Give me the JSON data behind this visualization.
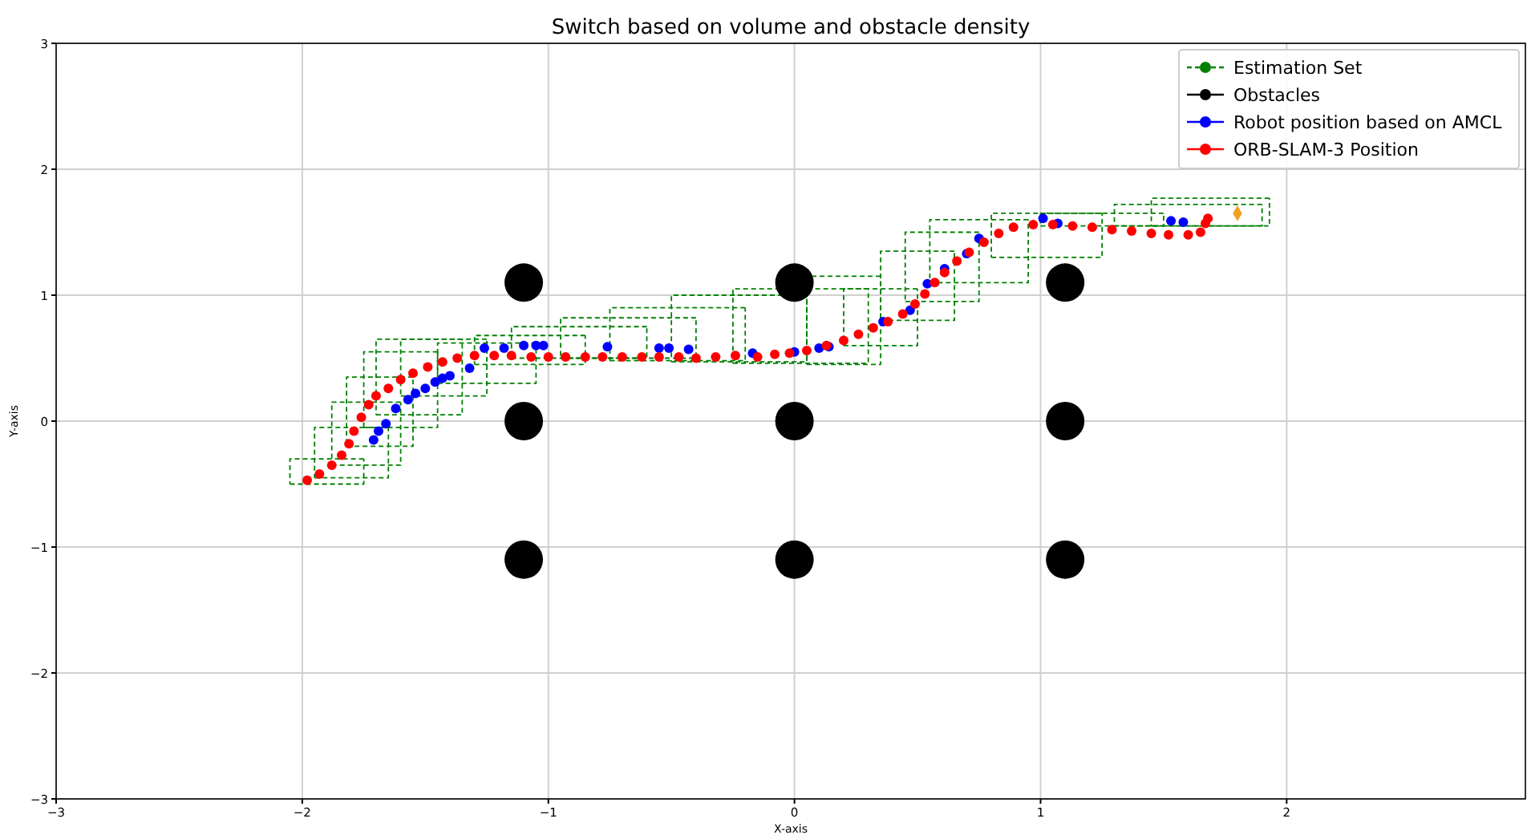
{
  "chart_data": {
    "type": "scatter",
    "title": "Switch based on volume and obstacle density",
    "xlabel": "X-axis",
    "ylabel": "Y-axis",
    "xlim": [
      -3,
      2.97
    ],
    "ylim": [
      -3,
      3
    ],
    "xticks": [
      -3,
      -2,
      -1,
      0,
      1,
      2
    ],
    "yticks": [
      -3,
      -2,
      -1,
      0,
      1,
      2,
      3
    ],
    "grid": true,
    "legend": "top right",
    "series": [
      {
        "name": "Estimation Set",
        "type": "line",
        "line_style": "dashed",
        "marker": "none",
        "color": "#008000",
        "x": [
          -2.05,
          -1.75,
          -1.75,
          null,
          -1.75,
          -2.05,
          -2.05,
          null,
          -1.95,
          -1.65,
          -1.65,
          null,
          -1.65,
          -1.95,
          -1.95,
          null,
          -1.88,
          -1.6,
          -1.6,
          null,
          -1.6,
          -1.88,
          -1.88,
          null,
          -1.82,
          -1.55,
          -1.55,
          null,
          -1.55,
          -1.82,
          -1.82,
          null,
          -1.75,
          -1.45,
          -1.45,
          null,
          -1.45,
          -1.75,
          -1.75,
          null,
          -1.7,
          -1.35,
          -1.35,
          null,
          -1.35,
          -1.7,
          -1.7,
          null,
          -1.6,
          -1.25,
          -1.25,
          null,
          -1.25,
          -1.6,
          -1.6,
          null,
          -1.45,
          -1.05,
          -1.05,
          null,
          -1.05,
          -1.45,
          -1.45,
          null,
          -1.3,
          -0.85,
          -0.85,
          null,
          -0.85,
          -1.3,
          -1.3,
          null,
          -1.15,
          -0.6,
          -0.6,
          null,
          -0.6,
          -1.15,
          -1.15,
          null,
          -0.95,
          -0.4,
          -0.4,
          null,
          -0.4,
          -0.95,
          -0.95,
          null,
          -0.75,
          -0.2,
          -0.2,
          null,
          -0.2,
          -0.75,
          -0.75,
          null,
          -0.5,
          0.05,
          0.05,
          null,
          0.05,
          -0.5,
          -0.5,
          null,
          -0.25,
          0.3,
          0.3,
          null,
          0.3,
          -0.25,
          -0.25,
          null,
          0.05,
          0.35,
          0.35,
          null,
          0.35,
          0.05,
          0.05,
          null,
          0.2,
          0.5,
          0.5,
          null,
          0.5,
          0.2,
          0.2,
          null,
          0.35,
          0.65,
          0.65,
          null,
          0.65,
          0.35,
          0.35,
          null,
          0.45,
          0.75,
          0.75,
          null,
          0.75,
          0.45,
          0.45,
          null,
          0.55,
          0.95,
          0.95,
          null,
          0.95,
          0.55,
          0.55,
          null,
          0.8,
          1.25,
          1.25,
          null,
          1.25,
          0.8,
          0.8,
          null,
          1.0,
          1.5,
          1.5,
          null,
          1.5,
          1.0,
          1.0,
          null,
          1.3,
          1.9,
          1.9,
          null,
          1.9,
          1.3,
          1.3,
          null,
          1.45,
          1.93,
          1.93,
          null,
          1.93,
          1.45,
          1.45
        ],
        "values": [
          -0.5,
          -0.5,
          -0.3,
          null,
          -0.3,
          -0.3,
          -0.5,
          null,
          -0.45,
          -0.45,
          -0.05,
          null,
          -0.05,
          -0.05,
          -0.45,
          null,
          -0.35,
          -0.35,
          0.15,
          null,
          0.15,
          0.15,
          -0.35,
          null,
          -0.2,
          -0.2,
          0.35,
          null,
          0.35,
          0.35,
          -0.2,
          null,
          -0.05,
          -0.05,
          0.55,
          null,
          0.55,
          0.55,
          -0.05,
          null,
          0.05,
          0.05,
          0.65,
          null,
          0.65,
          0.65,
          0.05,
          null,
          0.2,
          0.2,
          0.65,
          null,
          0.65,
          0.65,
          0.2,
          null,
          0.3,
          0.3,
          0.62,
          null,
          0.62,
          0.62,
          0.3,
          null,
          0.45,
          0.45,
          0.68,
          null,
          0.68,
          0.68,
          0.45,
          null,
          0.5,
          0.5,
          0.75,
          null,
          0.75,
          0.75,
          0.5,
          null,
          0.5,
          0.5,
          0.82,
          null,
          0.82,
          0.82,
          0.5,
          null,
          0.48,
          0.48,
          0.9,
          null,
          0.9,
          0.9,
          0.48,
          null,
          0.47,
          0.47,
          1.0,
          null,
          1.0,
          1.0,
          0.47,
          null,
          0.46,
          0.46,
          1.05,
          null,
          1.05,
          1.05,
          0.46,
          null,
          0.45,
          0.45,
          1.15,
          null,
          1.15,
          1.15,
          0.45,
          null,
          0.6,
          0.6,
          1.05,
          null,
          1.05,
          1.05,
          0.6,
          null,
          0.8,
          0.8,
          1.35,
          null,
          1.35,
          1.35,
          0.8,
          null,
          0.95,
          0.95,
          1.5,
          null,
          1.5,
          1.5,
          0.95,
          null,
          1.1,
          1.1,
          1.6,
          null,
          1.6,
          1.6,
          1.1,
          null,
          1.3,
          1.3,
          1.65,
          null,
          1.65,
          1.65,
          1.3,
          null,
          1.55,
          1.55,
          1.65,
          null,
          1.65,
          1.65,
          1.55,
          null,
          1.55,
          1.55,
          1.72,
          null,
          1.72,
          1.72,
          1.55,
          null,
          1.55,
          1.55,
          1.77,
          null,
          1.77,
          1.77,
          1.55
        ]
      },
      {
        "name": "Obstacles",
        "type": "bubble",
        "marker": "circle",
        "color": "#000000",
        "x": [
          -1.1,
          -1.1,
          -1.1,
          0,
          0,
          0,
          1.1,
          1.1,
          1.1
        ],
        "values": [
          1.1,
          0,
          -1.1,
          1.1,
          0,
          -1.1,
          1.1,
          0,
          -1.1
        ],
        "sizes": [
          1,
          1,
          1,
          1,
          1,
          1,
          1,
          1,
          1
        ]
      },
      {
        "name": "Robot position based on AMCL",
        "type": "scatter",
        "marker": "circle",
        "color": "#0000ff",
        "x": [
          -1.71,
          -1.69,
          -1.66,
          -1.62,
          -1.57,
          -1.54,
          -1.5,
          -1.46,
          -1.43,
          -1.4,
          -1.32,
          -1.26,
          -1.18,
          -1.1,
          -1.05,
          -1.02,
          -0.76,
          -0.55,
          -0.51,
          -0.43,
          -0.17,
          0.0,
          0.1,
          0.14,
          0.36,
          0.47,
          0.54,
          0.61,
          0.7,
          0.75,
          1.01,
          1.07,
          1.53,
          1.58
        ],
        "values": [
          -0.15,
          -0.08,
          -0.02,
          0.1,
          0.17,
          0.22,
          0.26,
          0.31,
          0.34,
          0.36,
          0.42,
          0.58,
          0.58,
          0.6,
          0.6,
          0.6,
          0.59,
          0.58,
          0.58,
          0.57,
          0.54,
          0.55,
          0.58,
          0.59,
          0.79,
          0.88,
          1.09,
          1.21,
          1.33,
          1.45,
          1.61,
          1.57,
          1.59,
          1.58
        ]
      },
      {
        "name": "ORB-SLAM-3 Position",
        "type": "scatter",
        "marker": "circle",
        "color": "#ff0000",
        "x": [
          -1.98,
          -1.93,
          -1.88,
          -1.84,
          -1.81,
          -1.79,
          -1.76,
          -1.73,
          -1.7,
          -1.65,
          -1.6,
          -1.55,
          -1.49,
          -1.43,
          -1.37,
          -1.3,
          -1.22,
          -1.15,
          -1.07,
          -1.0,
          -0.93,
          -0.85,
          -0.78,
          -0.7,
          -0.62,
          -0.55,
          -0.47,
          -0.4,
          -0.32,
          -0.24,
          -0.15,
          -0.08,
          -0.02,
          0.05,
          0.13,
          0.2,
          0.26,
          0.32,
          0.38,
          0.44,
          0.49,
          0.53,
          0.57,
          0.61,
          0.66,
          0.71,
          0.77,
          0.83,
          0.89,
          0.97,
          1.05,
          1.13,
          1.21,
          1.29,
          1.37,
          1.45,
          1.52,
          1.6,
          1.65,
          1.67,
          1.68
        ],
        "values": [
          -0.47,
          -0.42,
          -0.35,
          -0.27,
          -0.18,
          -0.08,
          0.03,
          0.13,
          0.2,
          0.26,
          0.33,
          0.38,
          0.43,
          0.47,
          0.5,
          0.52,
          0.52,
          0.52,
          0.51,
          0.51,
          0.51,
          0.51,
          0.51,
          0.51,
          0.51,
          0.51,
          0.51,
          0.5,
          0.51,
          0.52,
          0.51,
          0.53,
          0.54,
          0.56,
          0.6,
          0.64,
          0.69,
          0.74,
          0.79,
          0.85,
          0.93,
          1.01,
          1.1,
          1.18,
          1.27,
          1.34,
          1.42,
          1.49,
          1.54,
          1.56,
          1.56,
          1.55,
          1.54,
          1.52,
          1.51,
          1.49,
          1.48,
          1.48,
          1.5,
          1.57,
          1.61
        ]
      },
      {
        "type": "scatter",
        "marker": "diamond",
        "color": "#f0a020",
        "x": [
          1.8
        ],
        "values": [
          1.65
        ]
      }
    ]
  }
}
